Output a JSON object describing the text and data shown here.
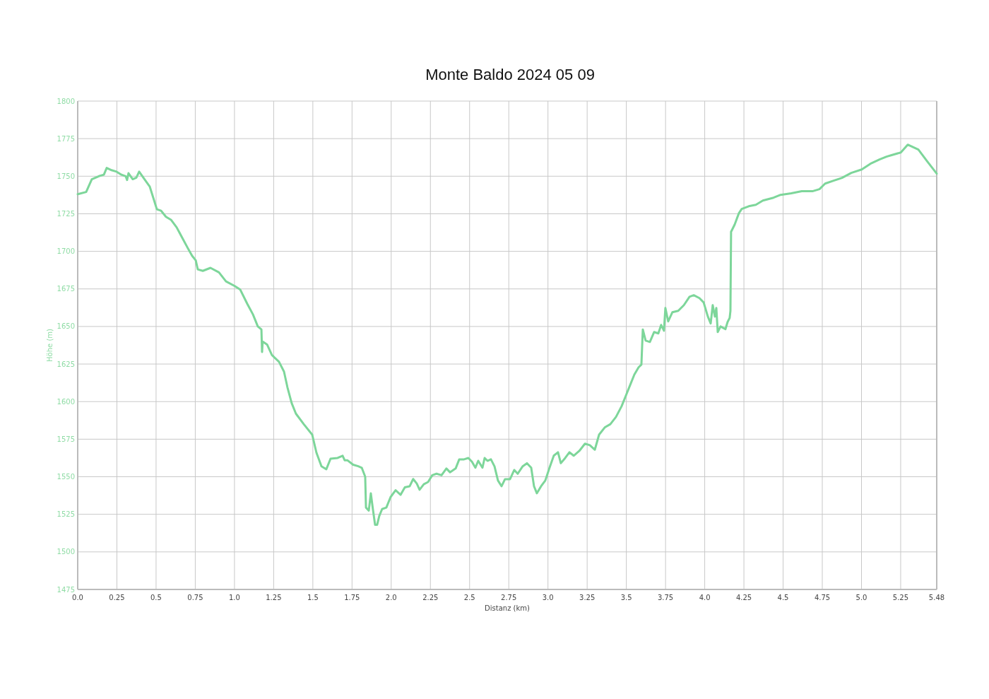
{
  "chart_data": {
    "type": "line",
    "title": "Monte Baldo 2024 05 09",
    "xlabel": "Distanz (km)",
    "ylabel": "Höhe (m)",
    "xlim": [
      0,
      5.48
    ],
    "xticks": [
      {
        "value": 0,
        "label": "0.0"
      },
      0.25,
      {
        "value": 0.5,
        "label": "0.5"
      },
      0.75,
      {
        "value": 1,
        "label": "1.0"
      },
      1.25,
      {
        "value": 1.5,
        "label": "1.5"
      },
      1.75,
      {
        "value": 2,
        "label": "2.0"
      },
      2.25,
      {
        "value": 2.5,
        "label": "2.5"
      },
      2.75,
      {
        "value": 3,
        "label": "3.0"
      },
      3.25,
      {
        "value": 3.5,
        "label": "3.5"
      },
      3.75,
      {
        "value": 4,
        "label": "4.0"
      },
      4.25,
      {
        "value": 4.5,
        "label": "4.5"
      },
      4.75,
      {
        "value": 5,
        "label": "5.0"
      },
      5.25,
      5.48
    ],
    "ylim": [
      1475,
      1800
    ],
    "yticks": [
      1475,
      1500,
      1525,
      1550,
      1575,
      1600,
      1625,
      1650,
      1675,
      1700,
      1725,
      1750,
      1775,
      1800
    ],
    "grid": true,
    "marker": "none",
    "line_style": "solid",
    "series": [
      {
        "color": "#7dd69a",
        "x": [
          0,
          0.054,
          0.09,
          0.135,
          0.167,
          0.185,
          0.216,
          0.248,
          0.279,
          0.306,
          0.315,
          0.324,
          0.351,
          0.374,
          0.392,
          0.419,
          0.46,
          0.505,
          0.532,
          0.563,
          0.595,
          0.631,
          0.667,
          0.703,
          0.73,
          0.753,
          0.766,
          0.798,
          0.847,
          0.901,
          0.946,
          1.0,
          1.037,
          1.082,
          1.118,
          1.149,
          1.172,
          1.176,
          1.18,
          1.208,
          1.239,
          1.284,
          1.316,
          1.338,
          1.365,
          1.392,
          1.442,
          1.496,
          1.523,
          1.555,
          1.586,
          1.613,
          1.658,
          1.69,
          1.703,
          1.72,
          1.757,
          1.789,
          1.812,
          1.834,
          1.839,
          1.857,
          1.87,
          1.883,
          1.897,
          1.91,
          1.924,
          1.942,
          1.969,
          1.996,
          2.028,
          2.06,
          2.087,
          2.118,
          2.14,
          2.163,
          2.181,
          2.208,
          2.235,
          2.262,
          2.289,
          2.321,
          2.352,
          2.375,
          2.411,
          2.434,
          2.465,
          2.492,
          2.515,
          2.537,
          2.555,
          2.582,
          2.596,
          2.614,
          2.636,
          2.659,
          2.681,
          2.704,
          2.726,
          2.758,
          2.785,
          2.807,
          2.839,
          2.866,
          2.893,
          2.911,
          2.929,
          2.956,
          2.983,
          3.01,
          3.037,
          3.064,
          3.082,
          3.11,
          3.137,
          3.164,
          3.2,
          3.236,
          3.267,
          3.299,
          3.326,
          3.362,
          3.398,
          3.434,
          3.47,
          3.497,
          3.524,
          3.551,
          3.578,
          3.596,
          3.605,
          3.623,
          3.65,
          3.677,
          3.704,
          3.722,
          3.74,
          3.749,
          3.767,
          3.794,
          3.831,
          3.867,
          3.903,
          3.93,
          3.966,
          3.993,
          4.02,
          4.038,
          4.051,
          4.065,
          4.074,
          4.083,
          4.101,
          4.132,
          4.146,
          4.159,
          4.164,
          4.168,
          4.191,
          4.218,
          4.236,
          4.281,
          4.326,
          4.371,
          4.439,
          4.484,
          4.552,
          4.619,
          4.687,
          4.732,
          4.768,
          4.822,
          4.876,
          4.935,
          5.002,
          5.057,
          5.115,
          5.16,
          5.192,
          5.251,
          5.295,
          5.363,
          5.417,
          5.48
        ],
        "values": [
          1738,
          1739.5,
          1748,
          1750,
          1751,
          1755.5,
          1754,
          1753,
          1751,
          1750,
          1747.5,
          1752,
          1748,
          1749,
          1753,
          1749,
          1743,
          1728,
          1727,
          1723,
          1721,
          1716,
          1709,
          1702,
          1697,
          1694,
          1688,
          1687,
          1689,
          1686,
          1680,
          1677,
          1674.5,
          1665,
          1658,
          1650,
          1648,
          1633,
          1640,
          1638,
          1631,
          1626.5,
          1620,
          1609.5,
          1599,
          1592,
          1585,
          1578,
          1566,
          1557,
          1555,
          1562,
          1562.5,
          1564,
          1561,
          1561,
          1558,
          1557,
          1556,
          1550,
          1529.5,
          1527.5,
          1539,
          1528.5,
          1518,
          1518,
          1524,
          1528.5,
          1529.5,
          1536.5,
          1541,
          1538,
          1543,
          1543.7,
          1548.5,
          1545.5,
          1541.4,
          1545,
          1546.5,
          1551,
          1552,
          1551,
          1555.5,
          1553,
          1555.5,
          1561.6,
          1561.6,
          1562.5,
          1560,
          1556,
          1560.6,
          1556,
          1562.5,
          1560.6,
          1561.6,
          1556.9,
          1547.5,
          1543.7,
          1548.4,
          1548.4,
          1554.5,
          1552,
          1557,
          1559,
          1556,
          1543.7,
          1539,
          1543.7,
          1547.5,
          1556,
          1564,
          1566.3,
          1559,
          1562.5,
          1566.3,
          1564,
          1567.2,
          1572,
          1571,
          1568,
          1578,
          1582.8,
          1585,
          1589.8,
          1597,
          1604,
          1611,
          1618,
          1622.8,
          1624.6,
          1648,
          1640.6,
          1639.7,
          1646.3,
          1645.4,
          1651,
          1647.2,
          1662.3,
          1653.4,
          1659.5,
          1660.4,
          1664.2,
          1669.8,
          1670.8,
          1668.9,
          1666,
          1656.6,
          1652,
          1664.2,
          1656.6,
          1662.3,
          1646.3,
          1650,
          1648.2,
          1653,
          1655.7,
          1660.4,
          1713,
          1717.8,
          1725.4,
          1728.2,
          1730,
          1731,
          1733.8,
          1735.7,
          1737.6,
          1738.6,
          1740,
          1740,
          1741.4,
          1745.1,
          1747,
          1748.9,
          1752.2,
          1754.5,
          1758.3,
          1761.1,
          1763,
          1764,
          1765.8,
          1771,
          1767.7,
          1760.2,
          1751.7
        ]
      }
    ]
  }
}
